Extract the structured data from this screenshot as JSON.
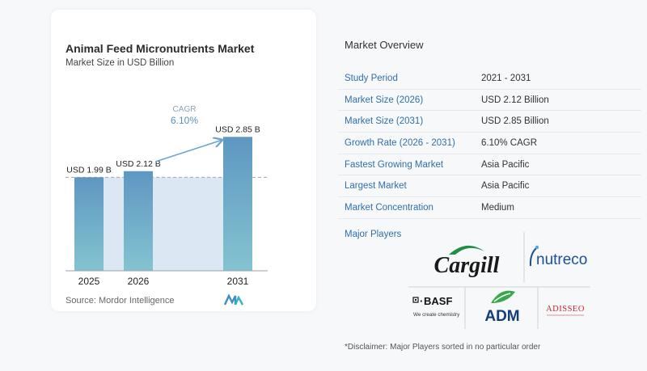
{
  "chart_data": {
    "type": "bar",
    "title": "Animal Feed Micronutrients Market",
    "subtitle": "Market Size in USD Billion",
    "categories": [
      "2025",
      "2026",
      "2031"
    ],
    "values": [
      1.99,
      2.12,
      2.85
    ],
    "value_labels": [
      "USD 1.99 B",
      "USD 2.12 B",
      "USD 2.85 B"
    ],
    "ylim": [
      0,
      3.2
    ],
    "cagr_label": "CAGR",
    "cagr_value": "6.10%",
    "colors": {
      "bar": "#5e97c2",
      "bar_bottom": "#84c3d0",
      "band": "#dbe8f3",
      "arrow": "#6ea4cf",
      "dashed": "#9aa7b4"
    }
  },
  "source": "Source:  Mordor Intelligence",
  "overview": {
    "title": "Market Overview",
    "rows": [
      {
        "label": "Study Period",
        "value": "2021 - 2031"
      },
      {
        "label": "Market Size (2026)",
        "value": "USD 2.12 Billion"
      },
      {
        "label": "Market Size (2031)",
        "value": "USD 2.85 Billion"
      },
      {
        "label": "Growth Rate (2026 - 2031)",
        "value": "6.10% CAGR"
      },
      {
        "label": "Fastest Growing Market",
        "value": "Asia Pacific"
      },
      {
        "label": "Largest Market",
        "value": "Asia Pacific"
      },
      {
        "label": "Market Concentration",
        "value": "Medium"
      }
    ]
  },
  "major_players": {
    "label": "Major Players",
    "logos": {
      "cargill": "Cargill",
      "nutreco": "nutreco",
      "basf": "BASF",
      "basf_tagline": "We create chemistry",
      "adm": "ADM",
      "adisseo": "ADISSEO"
    }
  },
  "disclaimer": "*Disclaimer: Major Players sorted in no particular order"
}
